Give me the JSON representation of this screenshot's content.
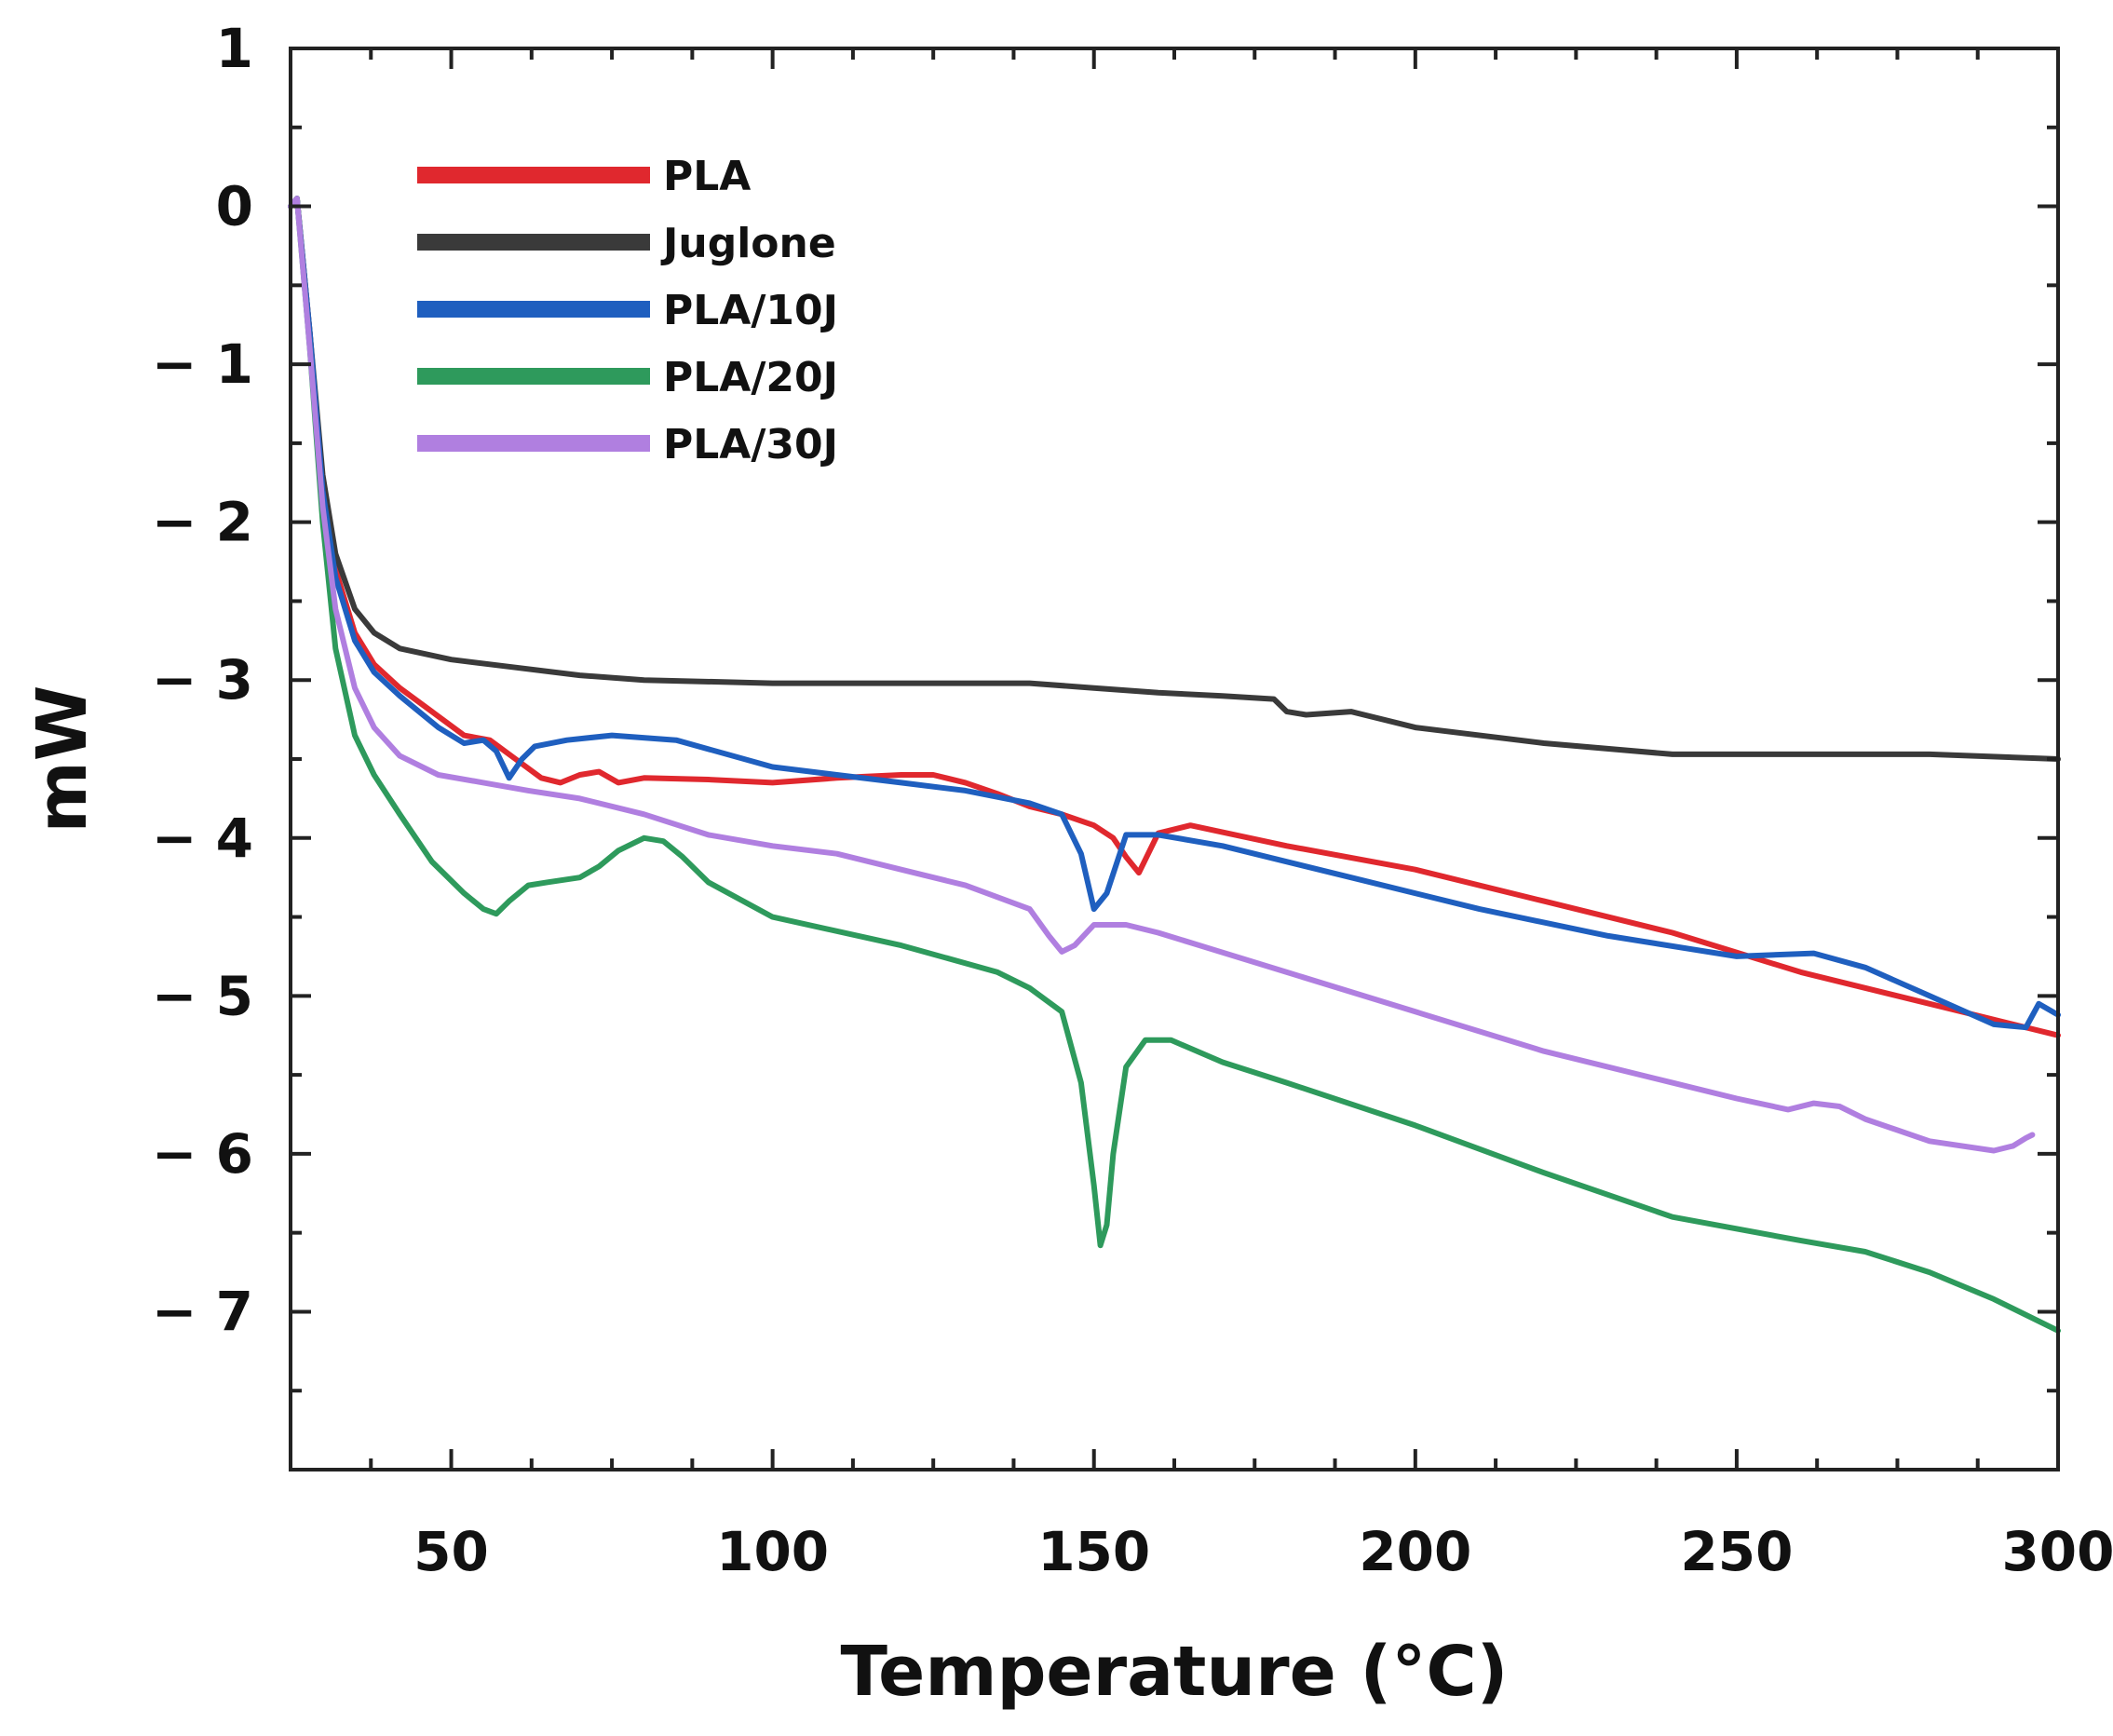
{
  "chart_data": {
    "type": "line",
    "title": "",
    "xlabel": "Temperature (°C)",
    "ylabel": "mW",
    "xlim": [
      25,
      300
    ],
    "ylim": [
      -8,
      1
    ],
    "x_ticks": [
      {
        "value": 50,
        "label": "50"
      },
      {
        "value": 100,
        "label": "100"
      },
      {
        "value": 150,
        "label": "150"
      },
      {
        "value": 200,
        "label": "200"
      },
      {
        "value": 250,
        "label": "250"
      },
      {
        "value": 300,
        "label": "300"
      }
    ],
    "y_ticks": [
      {
        "value": 1,
        "label": "1"
      },
      {
        "value": 0,
        "label": "0"
      },
      {
        "value": -1,
        "label": "− 1"
      },
      {
        "value": -2,
        "label": "− 2"
      },
      {
        "value": -3,
        "label": "− 3"
      },
      {
        "value": -4,
        "label": "− 4"
      },
      {
        "value": -5,
        "label": "− 5"
      },
      {
        "value": -6,
        "label": "− 6"
      },
      {
        "value": -7,
        "label": "− 7"
      }
    ],
    "grid": false,
    "legend_position": "top-left",
    "series": [
      {
        "name": "PLA",
        "color": "#e0282e",
        "x": [
          25,
          26,
          28,
          30,
          32,
          35,
          38,
          42,
          47,
          52,
          56,
          60,
          64,
          67,
          70,
          73,
          76,
          80,
          90,
          100,
          110,
          120,
          125,
          130,
          135,
          140,
          145,
          150,
          153,
          155,
          157,
          160,
          165,
          180,
          200,
          220,
          240,
          260,
          280,
          300
        ],
        "y": [
          0.0,
          0.05,
          -0.8,
          -1.8,
          -2.3,
          -2.7,
          -2.9,
          -3.05,
          -3.2,
          -3.35,
          -3.38,
          -3.5,
          -3.62,
          -3.65,
          -3.6,
          -3.58,
          -3.65,
          -3.62,
          -3.63,
          -3.65,
          -3.62,
          -3.6,
          -3.6,
          -3.65,
          -3.72,
          -3.8,
          -3.85,
          -3.92,
          -4.0,
          -4.12,
          -4.22,
          -3.97,
          -3.92,
          -4.05,
          -4.2,
          -4.4,
          -4.6,
          -4.85,
          -5.05,
          -5.25
        ]
      },
      {
        "name": "Juglone",
        "color": "#3a3a3a",
        "x": [
          25,
          26,
          28,
          30,
          32,
          35,
          38,
          42,
          50,
          60,
          70,
          80,
          100,
          120,
          140,
          150,
          160,
          170,
          178,
          180,
          183,
          190,
          200,
          220,
          240,
          250,
          260,
          280,
          300
        ],
        "y": [
          0.0,
          0.05,
          -0.8,
          -1.7,
          -2.2,
          -2.55,
          -2.7,
          -2.8,
          -2.87,
          -2.92,
          -2.97,
          -3.0,
          -3.02,
          -3.02,
          -3.02,
          -3.05,
          -3.08,
          -3.1,
          -3.12,
          -3.2,
          -3.22,
          -3.2,
          -3.3,
          -3.4,
          -3.47,
          -3.47,
          -3.47,
          -3.47,
          -3.5
        ]
      },
      {
        "name": "PLA/10J",
        "color": "#1f5fbf",
        "x": [
          25,
          26,
          28,
          30,
          32,
          35,
          38,
          42,
          48,
          52,
          55,
          57,
          59,
          61,
          63,
          68,
          75,
          85,
          100,
          110,
          120,
          130,
          140,
          145,
          148,
          150,
          152,
          155,
          160,
          170,
          190,
          210,
          230,
          250,
          262,
          270,
          280,
          290,
          295,
          297,
          300
        ],
        "y": [
          0.0,
          0.05,
          -0.8,
          -1.8,
          -2.35,
          -2.75,
          -2.95,
          -3.1,
          -3.3,
          -3.4,
          -3.38,
          -3.45,
          -3.62,
          -3.5,
          -3.42,
          -3.38,
          -3.35,
          -3.38,
          -3.55,
          -3.6,
          -3.65,
          -3.7,
          -3.78,
          -3.85,
          -4.1,
          -4.45,
          -4.35,
          -3.98,
          -3.98,
          -4.05,
          -4.25,
          -4.45,
          -4.62,
          -4.75,
          -4.73,
          -4.82,
          -5.0,
          -5.18,
          -5.2,
          -5.05,
          -5.12
        ]
      },
      {
        "name": "PLA/20J",
        "color": "#2e9a5c",
        "x": [
          25,
          26,
          28,
          30,
          32,
          35,
          38,
          42,
          47,
          52,
          55,
          57,
          59,
          62,
          65,
          70,
          73,
          76,
          80,
          83,
          86,
          90,
          100,
          120,
          135,
          140,
          145,
          148,
          150,
          151,
          152,
          153,
          155,
          158,
          162,
          170,
          180,
          200,
          220,
          240,
          260,
          270,
          280,
          290,
          300
        ],
        "y": [
          0.0,
          0.05,
          -0.9,
          -2.0,
          -2.8,
          -3.35,
          -3.6,
          -3.85,
          -4.15,
          -4.35,
          -4.45,
          -4.48,
          -4.4,
          -4.3,
          -4.28,
          -4.25,
          -4.18,
          -4.08,
          -4.0,
          -4.02,
          -4.12,
          -4.28,
          -4.5,
          -4.68,
          -4.85,
          -4.95,
          -5.1,
          -5.55,
          -6.2,
          -6.58,
          -6.45,
          -6.0,
          -5.45,
          -5.28,
          -5.28,
          -5.42,
          -5.55,
          -5.82,
          -6.12,
          -6.4,
          -6.55,
          -6.62,
          -6.75,
          -6.92,
          -7.12
        ]
      },
      {
        "name": "PLA/30J",
        "color": "#b07fe0",
        "x": [
          25,
          26,
          28,
          30,
          32,
          35,
          38,
          42,
          48,
          55,
          62,
          70,
          80,
          90,
          100,
          110,
          120,
          130,
          140,
          143,
          145,
          147,
          150,
          155,
          160,
          180,
          200,
          220,
          240,
          250,
          258,
          262,
          266,
          270,
          280,
          290,
          293,
          295,
          296
        ],
        "y": [
          0.0,
          0.05,
          -0.9,
          -1.9,
          -2.55,
          -3.05,
          -3.3,
          -3.48,
          -3.6,
          -3.65,
          -3.7,
          -3.75,
          -3.85,
          -3.98,
          -4.05,
          -4.1,
          -4.2,
          -4.3,
          -4.45,
          -4.62,
          -4.72,
          -4.68,
          -4.55,
          -4.55,
          -4.6,
          -4.85,
          -5.1,
          -5.35,
          -5.55,
          -5.65,
          -5.72,
          -5.68,
          -5.7,
          -5.78,
          -5.92,
          -5.98,
          -5.95,
          -5.9,
          -5.88
        ]
      }
    ]
  }
}
